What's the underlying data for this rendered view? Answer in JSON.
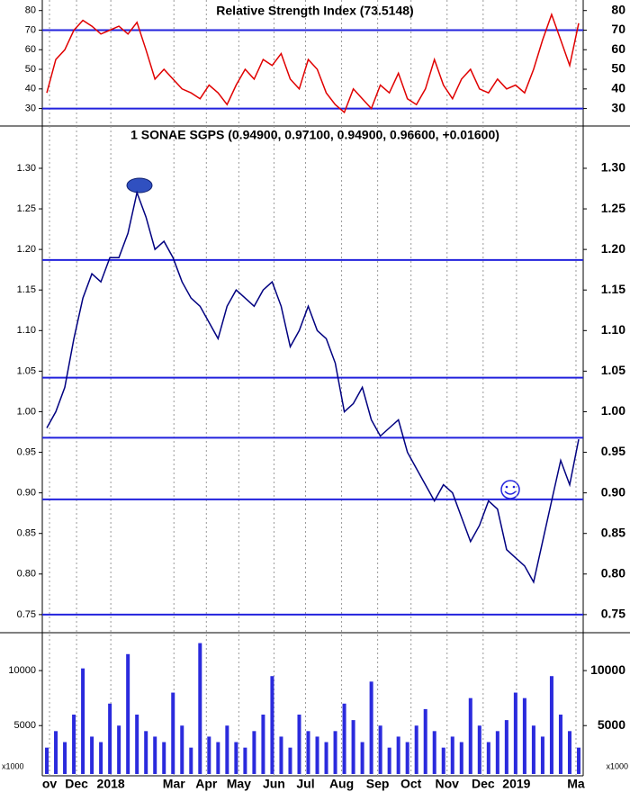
{
  "chart_data": [
    {
      "type": "line",
      "title": "Relative Strength Index (73.5148)",
      "color": "#e00000",
      "level_color": "#2222dd",
      "values": [
        38,
        55,
        60,
        70,
        75,
        72,
        68,
        70,
        72,
        68,
        74,
        60,
        45,
        50,
        45,
        40,
        38,
        35,
        42,
        38,
        32,
        42,
        50,
        45,
        55,
        52,
        58,
        45,
        40,
        55,
        50,
        38,
        32,
        28,
        40,
        35,
        30,
        42,
        38,
        48,
        35,
        32,
        40,
        55,
        42,
        35,
        45,
        50,
        40,
        38,
        45,
        40,
        42,
        38,
        50,
        65,
        78,
        65,
        52,
        73.5148
      ],
      "xlim": [
        0,
        60
      ],
      "ylim": [
        22,
        84
      ],
      "yticks": [
        30,
        40,
        50,
        60,
        70,
        80
      ],
      "levels": [
        70,
        30
      ]
    },
    {
      "type": "line",
      "title": "1 SONAE SGPS (0.94900, 0.97100, 0.94900, 0.96600, +0.01600)",
      "color": "#000080",
      "level_color": "#2222dd",
      "values": [
        0.98,
        1.0,
        1.03,
        1.09,
        1.14,
        1.17,
        1.16,
        1.19,
        1.19,
        1.22,
        1.27,
        1.24,
        1.2,
        1.21,
        1.19,
        1.16,
        1.14,
        1.13,
        1.11,
        1.09,
        1.13,
        1.15,
        1.14,
        1.13,
        1.15,
        1.16,
        1.13,
        1.08,
        1.1,
        1.13,
        1.1,
        1.09,
        1.06,
        1.0,
        1.01,
        1.03,
        0.99,
        0.97,
        0.98,
        0.99,
        0.95,
        0.93,
        0.91,
        0.89,
        0.91,
        0.9,
        0.87,
        0.84,
        0.86,
        0.89,
        0.88,
        0.83,
        0.82,
        0.81,
        0.79,
        0.84,
        0.89,
        0.94,
        0.91,
        0.966
      ],
      "xlim": [
        0,
        60
      ],
      "ylim": [
        0.731,
        1.351
      ],
      "yticks": [
        0.75,
        {
          "value": 0.8,
          "label": "0.80"
        },
        0.85,
        {
          "value": 0.9,
          "label": "0.90"
        },
        0.95,
        {
          "value": 1.0,
          "label": "1.00"
        },
        1.05,
        {
          "value": 1.1,
          "label": "1.10"
        },
        1.15,
        {
          "value": 1.2,
          "label": "1.20"
        },
        1.25,
        {
          "value": 1.3,
          "label": "1.30"
        }
      ],
      "levels": [
        1.187,
        1.042,
        0.968,
        0.892,
        0.75
      ]
    },
    {
      "type": "bar",
      "color": "#2b2bdd",
      "unit_label": "x1000",
      "values": [
        3000,
        4500,
        3500,
        6000,
        10200,
        4000,
        3500,
        7000,
        5000,
        11500,
        6000,
        4500,
        4000,
        3500,
        8000,
        5000,
        3000,
        12500,
        4000,
        3500,
        5000,
        3500,
        3000,
        4500,
        6000,
        9500,
        4000,
        3000,
        6000,
        4500,
        4000,
        3500,
        4500,
        7000,
        5500,
        3500,
        9000,
        5000,
        3000,
        4000,
        3500,
        5000,
        6500,
        4500,
        3000,
        4000,
        3500,
        7500,
        5000,
        3500,
        4500,
        5500,
        8000,
        7500,
        5000,
        4000,
        9500,
        6000,
        4500,
        3000
      ],
      "xlim": [
        0,
        60
      ],
      "ylim": [
        600,
        13200
      ],
      "yticks": [
        5000,
        10000
      ],
      "xticks": [
        {
          "value": 0.8,
          "label": "ov"
        },
        {
          "value": 3.8,
          "label": "Dec"
        },
        {
          "value": 7.6,
          "label": "2018"
        },
        {
          "value": 14.6,
          "label": "Mar"
        },
        {
          "value": 18.2,
          "label": "Apr"
        },
        {
          "value": 21.8,
          "label": "May"
        },
        {
          "value": 25.7,
          "label": "Jun"
        },
        {
          "value": 29.2,
          "label": "Jul"
        },
        {
          "value": 33.2,
          "label": "Aug"
        },
        {
          "value": 37.2,
          "label": "Sep"
        },
        {
          "value": 40.9,
          "label": "Oct"
        },
        {
          "value": 44.9,
          "label": "Nov"
        },
        {
          "value": 48.9,
          "label": "Dec"
        },
        {
          "value": 52.6,
          "label": "2019"
        },
        {
          "value": 59.2,
          "label": "Ma"
        }
      ]
    }
  ]
}
